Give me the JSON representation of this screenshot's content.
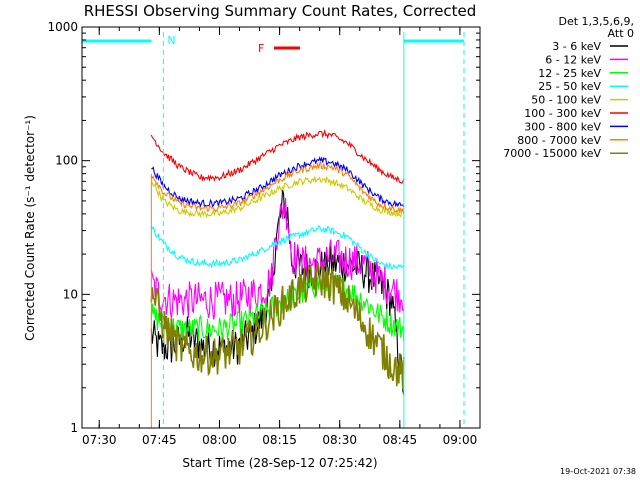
{
  "chart_data": {
    "type": "line",
    "title": "RHESSI Observing Summary Count Rates, Corrected",
    "xlabel": "Start Time (28-Sep-12 07:25:42)",
    "ylabel": "Corrected Count Rate (s⁻¹ detector⁻¹)",
    "xlim": [
      "07:25:42",
      "09:05:00"
    ],
    "ylim": [
      1,
      1000
    ],
    "y_scale": "log",
    "x_ticks": [
      "07:30",
      "07:45",
      "08:00",
      "08:15",
      "08:30",
      "08:45",
      "09:00"
    ],
    "y_ticks": [
      "1",
      "10",
      "100",
      "1000"
    ],
    "grid": false,
    "legend_header": [
      "Det 1,3,5,6,9,",
      "Att 0"
    ],
    "legend_position": "right",
    "series": [
      {
        "name": "3 - 6 keV",
        "color": "#000000",
        "x": [
          "07:43",
          "07:45",
          "07:48",
          "07:52",
          "07:56",
          "08:00",
          "08:04",
          "08:08",
          "08:11",
          "08:13",
          "08:14",
          "08:15",
          "08:16",
          "08:17",
          "08:18",
          "08:20",
          "08:24",
          "08:28",
          "08:32",
          "08:36",
          "08:40",
          "08:43",
          "08:45",
          "08:46"
        ],
        "y": [
          5,
          4,
          4,
          5,
          4,
          4,
          4,
          5,
          7,
          10,
          25,
          35,
          50,
          40,
          18,
          16,
          15,
          17,
          17,
          15,
          12,
          9,
          3,
          2
        ]
      },
      {
        "name": "6 - 12 keV",
        "color": "#ff00ff",
        "x": [
          "07:43",
          "07:45",
          "07:48",
          "07:52",
          "07:56",
          "08:00",
          "08:04",
          "08:08",
          "08:11",
          "08:13",
          "08:14",
          "08:15",
          "08:16",
          "08:17",
          "08:18",
          "08:20",
          "08:24",
          "08:28",
          "08:32",
          "08:36",
          "08:40",
          "08:43",
          "08:45",
          "08:46"
        ],
        "y": [
          12,
          10,
          9,
          9,
          9,
          9,
          9,
          10,
          11,
          13,
          28,
          35,
          48,
          40,
          20,
          17,
          17,
          19,
          18,
          17,
          13,
          11,
          10,
          10
        ]
      },
      {
        "name": "12 - 25 keV",
        "color": "#00ff00",
        "x": [
          "07:43",
          "07:46",
          "07:50",
          "07:55",
          "08:00",
          "08:05",
          "08:10",
          "08:15",
          "08:20",
          "08:25",
          "08:28",
          "08:32",
          "08:36",
          "08:40",
          "08:43",
          "08:46"
        ],
        "y": [
          7,
          6,
          5.5,
          5.5,
          5.5,
          6,
          7,
          8.5,
          10,
          12,
          12,
          11,
          9,
          7,
          6,
          5.5
        ]
      },
      {
        "name": "25 - 50 keV",
        "color": "#00ffff",
        "x": [
          "07:43",
          "07:46",
          "07:50",
          "07:55",
          "08:00",
          "08:05",
          "08:10",
          "08:15",
          "08:20",
          "08:25",
          "08:28",
          "08:32",
          "08:36",
          "08:40",
          "08:43",
          "08:46"
        ],
        "y": [
          32,
          24,
          19,
          17,
          17,
          18,
          21,
          25,
          28,
          31,
          30,
          27,
          21,
          17,
          16,
          16
        ]
      },
      {
        "name": "50 - 100 keV",
        "color": "#cccc00",
        "x": [
          "07:43",
          "07:46",
          "07:50",
          "07:55",
          "08:00",
          "08:05",
          "08:10",
          "08:15",
          "08:20",
          "08:25",
          "08:28",
          "08:32",
          "08:36",
          "08:40",
          "08:43",
          "08:46"
        ],
        "y": [
          72,
          50,
          42,
          40,
          40,
          44,
          52,
          62,
          70,
          73,
          70,
          62,
          50,
          43,
          41,
          40
        ]
      },
      {
        "name": "100 - 300 keV",
        "color": "#ff0000",
        "x": [
          "07:43",
          "07:46",
          "07:50",
          "07:55",
          "08:00",
          "08:05",
          "08:10",
          "08:15",
          "08:20",
          "08:25",
          "08:28",
          "08:32",
          "08:36",
          "08:40",
          "08:43",
          "08:46"
        ],
        "y": [
          155,
          115,
          90,
          75,
          75,
          85,
          105,
          130,
          150,
          160,
          155,
          135,
          105,
          85,
          75,
          70
        ]
      },
      {
        "name": "300 - 800 keV",
        "color": "#0000ff",
        "x": [
          "07:43",
          "07:46",
          "07:50",
          "07:55",
          "08:00",
          "08:05",
          "08:10",
          "08:15",
          "08:20",
          "08:25",
          "08:28",
          "08:32",
          "08:36",
          "08:40",
          "08:43",
          "08:46"
        ],
        "y": [
          90,
          65,
          52,
          48,
          48,
          52,
          62,
          78,
          92,
          100,
          97,
          85,
          65,
          52,
          48,
          46
        ]
      },
      {
        "name": "800 - 7000 keV",
        "color": "#ff8000",
        "x": [
          "07:43",
          "07:46",
          "07:50",
          "07:55",
          "08:00",
          "08:05",
          "08:10",
          "08:15",
          "08:20",
          "08:25",
          "08:28",
          "08:32",
          "08:36",
          "08:40",
          "08:43",
          "08:46"
        ],
        "y": [
          80,
          58,
          48,
          44,
          44,
          48,
          58,
          72,
          85,
          92,
          90,
          78,
          58,
          47,
          44,
          42
        ]
      },
      {
        "name": "7000 - 15000 keV",
        "color": "#808000",
        "x": [
          "07:43",
          "07:46",
          "07:50",
          "07:55",
          "08:00",
          "08:05",
          "08:10",
          "08:15",
          "08:20",
          "08:25",
          "08:28",
          "08:32",
          "08:36",
          "08:40",
          "08:43",
          "08:46"
        ],
        "y": [
          11,
          6,
          4,
          3.5,
          3.5,
          4,
          5.5,
          8,
          11,
          13,
          12,
          9,
          6,
          4,
          3,
          2.5
        ]
      }
    ],
    "annotations": [
      {
        "text": "N",
        "color": "#00ffff"
      },
      {
        "text": "F",
        "color": "#ff0000"
      }
    ],
    "timestamp": "19-Oct-2021 07:38"
  }
}
